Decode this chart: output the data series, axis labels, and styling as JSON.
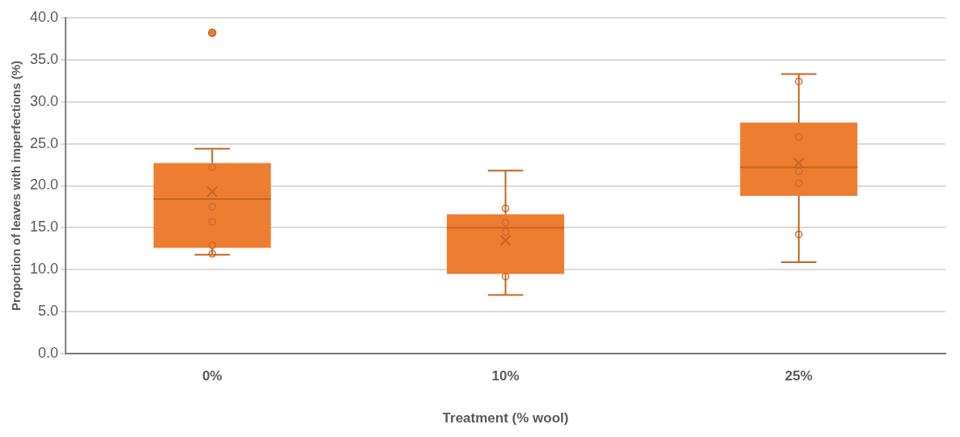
{
  "chart_data": {
    "type": "box",
    "xlabel": "Treatment (% wool)",
    "ylabel": "Proportion of leaves with imperfections (%)",
    "categories": [
      "0%",
      "10%",
      "25%"
    ],
    "ylim": [
      0,
      40
    ],
    "yticks": [
      {
        "value": 0,
        "label": "0.0"
      },
      {
        "value": 5,
        "label": "5.0"
      },
      {
        "value": 10,
        "label": "10.0"
      },
      {
        "value": 15,
        "label": "15.0"
      },
      {
        "value": 20,
        "label": "20.0"
      },
      {
        "value": 25,
        "label": "25.0"
      },
      {
        "value": 30,
        "label": "30.0"
      },
      {
        "value": 35,
        "label": "35.0"
      },
      {
        "value": 40,
        "label": "40.0"
      }
    ],
    "grid": "y",
    "series": [
      {
        "color": "#ed7d31",
        "boxes": [
          {
            "low": 11.8,
            "q1": 12.6,
            "median": 18.4,
            "q3": 22.7,
            "high": 24.4,
            "mean": 19.3,
            "outliers": [
              38.2
            ]
          },
          {
            "low": 7.0,
            "q1": 9.5,
            "median": 15.0,
            "q3": 16.6,
            "high": 21.8,
            "mean": 13.5
          },
          {
            "low": 10.9,
            "q1": 18.8,
            "median": 22.2,
            "q3": 27.5,
            "high": 33.3,
            "mean": 22.7
          }
        ]
      },
      {
        "type": "scatter",
        "color": "#d0692a",
        "marker": "circle",
        "x": [
          "0%",
          "0%",
          "0%",
          "0%",
          "0%",
          "10%",
          "10%",
          "10%",
          "10%",
          "25%",
          "25%",
          "25%",
          "25%",
          "25%"
        ],
        "values": [
          22.2,
          17.5,
          15.7,
          12.9,
          11.9,
          17.3,
          15.6,
          14.5,
          9.2,
          32.4,
          25.8,
          21.7,
          20.3,
          14.2
        ]
      }
    ]
  }
}
